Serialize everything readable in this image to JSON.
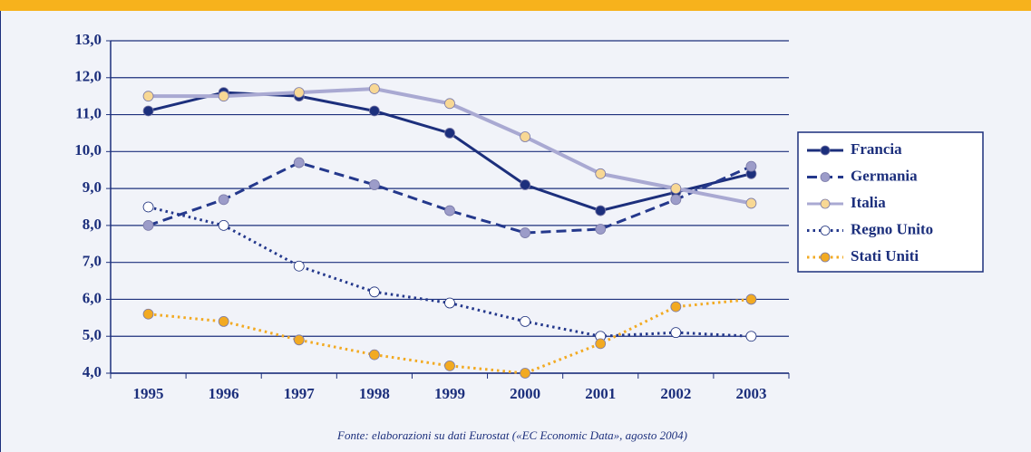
{
  "chart_data": {
    "type": "line",
    "categories": [
      "1995",
      "1996",
      "1997",
      "1998",
      "1999",
      "2000",
      "2001",
      "2002",
      "2003"
    ],
    "series": [
      {
        "name": "Francia",
        "color": "#1c2f7c",
        "marker_color": "#1c2f7c",
        "dash": "solid",
        "values": [
          11.1,
          11.6,
          11.5,
          11.1,
          10.5,
          9.1,
          8.4,
          8.9,
          9.4
        ]
      },
      {
        "name": "Germania",
        "color": "#24388c",
        "marker_color": "#9c9cc9",
        "dash": "dashed",
        "values": [
          8.0,
          8.7,
          9.7,
          9.1,
          8.4,
          7.8,
          7.9,
          8.7,
          9.6
        ]
      },
      {
        "name": "Italia",
        "color": "#a9a9d2",
        "marker_color": "#f8d894",
        "dash": "solid",
        "values": [
          11.5,
          11.5,
          11.6,
          11.7,
          11.3,
          10.4,
          9.4,
          9.0,
          8.6
        ]
      },
      {
        "name": "Regno Unito",
        "color": "#24388c",
        "marker_color": "#ffffff",
        "dash": "dotted",
        "values": [
          8.5,
          8.0,
          6.9,
          6.2,
          5.9,
          5.4,
          5.0,
          5.1,
          5.0
        ]
      },
      {
        "name": "Stati Uniti",
        "color": "#f2aa22",
        "marker_color": "#f2aa22",
        "dash": "dotted",
        "values": [
          5.6,
          5.4,
          4.9,
          4.5,
          4.2,
          4.0,
          4.8,
          5.8,
          6.0
        ]
      }
    ],
    "ylim": [
      4,
      13
    ],
    "yticks": [
      {
        "value": 4,
        "label": "4,0"
      },
      {
        "value": 5,
        "label": "5,0"
      },
      {
        "value": 6,
        "label": "6,0"
      },
      {
        "value": 7,
        "label": "7,0"
      },
      {
        "value": 8,
        "label": "8,0"
      },
      {
        "value": 9,
        "label": "9,0"
      },
      {
        "value": 10,
        "label": "10,0"
      },
      {
        "value": 11,
        "label": "11,0"
      },
      {
        "value": 12,
        "label": "12,0"
      },
      {
        "value": 13,
        "label": "13,0"
      }
    ],
    "grid": true,
    "legend": "right",
    "source": "Fonte: elaborazioni su dati Eurostat («EC Economic Data», agosto 2004)"
  }
}
